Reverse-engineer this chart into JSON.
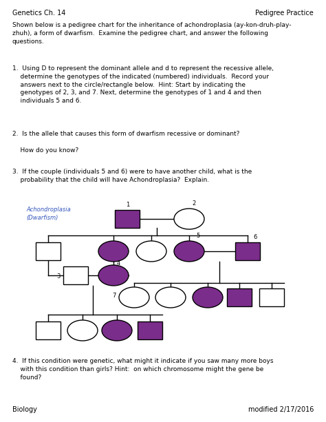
{
  "bg_color": "#ffffff",
  "purple": "#7B2D8B",
  "black": "#000000",
  "blue": "#3355BB",
  "title_left": "Genetics Ch. 14",
  "title_right": "Pedigree Practice",
  "footer_left": "Biology",
  "footer_right": "modified 2/17/2016",
  "intro": "Shown below is a pedigree chart for the inheritance of achondroplasia (ay-kon-druh-play-\nzhuh), a form of dwarfism.  Examine the pedigree chart, and answer the following\nquestions.",
  "q1": "1.  Using D to represent the dominant allele and d to represent the recessive allele,\n    determine the genotypes of the indicated (numbered) individuals.  Record your\n    answers next to the circle/rectangle below.  Hint: Start by indicating the\n    genotypes of 2, 3, and 7. Next, determine the genotypes of 1 and 4 and then\n    individuals 5 and 6.",
  "q2": "2.  Is the allele that causes this form of dwarfism recessive or dominant?\n\n    How do you know?",
  "q3": "3.  If the couple (individuals 5 and 6) were to have another child, what is the\n    probability that the child will have Achondroplasia?  Explain.",
  "q4": "4.  If this condition were genetic, what might it indicate if you saw many more boys\n    with this condition than girls? Hint:  on which chromosome might the gene be\n    found?",
  "legend": "Achondroplasia\n(Dwarfism)"
}
